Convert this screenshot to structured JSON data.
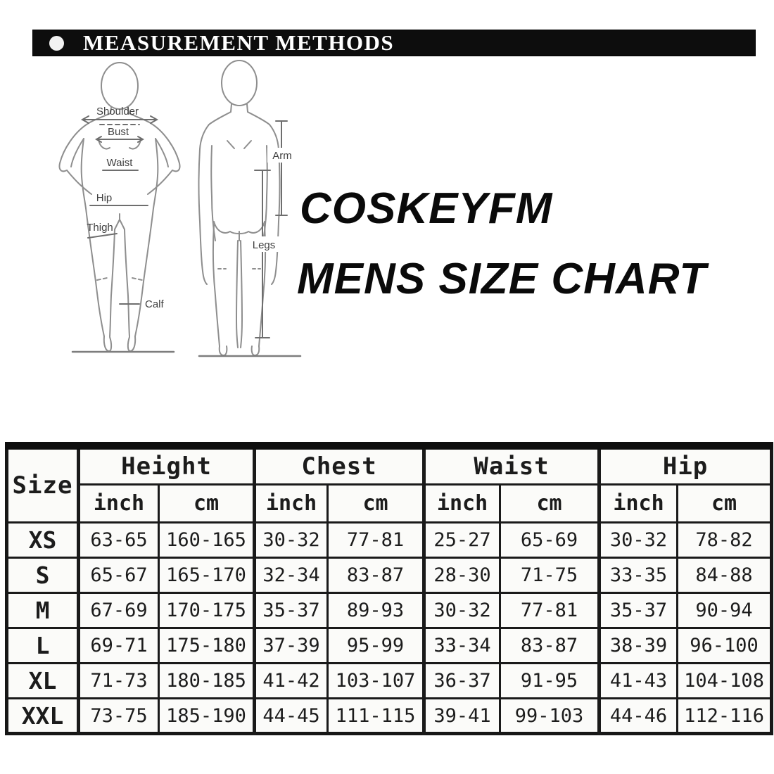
{
  "header_bar": {
    "title": "MEASUREMENT METHODS",
    "bullet_icon": "circle",
    "bg_color": "#0d0d0d",
    "text_color": "#ffffff"
  },
  "brand": {
    "line1": "COSKEYFM",
    "line2": "MENS SIZE CHART",
    "text_color": "#0a0a0a"
  },
  "measurement_diagram": {
    "front": {
      "shoulder": "Shoulder",
      "bust": "Bust",
      "waist": "Waist",
      "hip": "Hip",
      "thigh": "Thigh",
      "calf": "Calf"
    },
    "back": {
      "arm": "Arm",
      "legs": "Legs"
    },
    "outline_color": "#8e8e8e",
    "label_color": "#3f3f3f"
  },
  "size_table": {
    "corner_label": "Size",
    "groups": [
      "Height",
      "Chest",
      "Waist",
      "Hip"
    ],
    "units": [
      "inch",
      "cm"
    ],
    "border_color": "#171717",
    "rows": [
      {
        "size": "XS",
        "cells": [
          "63-65",
          "160-165",
          "30-32",
          "77-81",
          "25-27",
          "65-69",
          "30-32",
          "78-82"
        ]
      },
      {
        "size": "S",
        "cells": [
          "65-67",
          "165-170",
          "32-34",
          "83-87",
          "28-30",
          "71-75",
          "33-35",
          "84-88"
        ]
      },
      {
        "size": "M",
        "cells": [
          "67-69",
          "170-175",
          "35-37",
          "89-93",
          "30-32",
          "77-81",
          "35-37",
          "90-94"
        ]
      },
      {
        "size": "L",
        "cells": [
          "69-71",
          "175-180",
          "37-39",
          "95-99",
          "33-34",
          "83-87",
          "38-39",
          "96-100"
        ]
      },
      {
        "size": "XL",
        "cells": [
          "71-73",
          "180-185",
          "41-42",
          "103-107",
          "36-37",
          "91-95",
          "41-43",
          "104-108"
        ]
      },
      {
        "size": "XXL",
        "cells": [
          "73-75",
          "185-190",
          "44-45",
          "111-115",
          "39-41",
          "99-103",
          "44-46",
          "112-116"
        ]
      }
    ]
  }
}
